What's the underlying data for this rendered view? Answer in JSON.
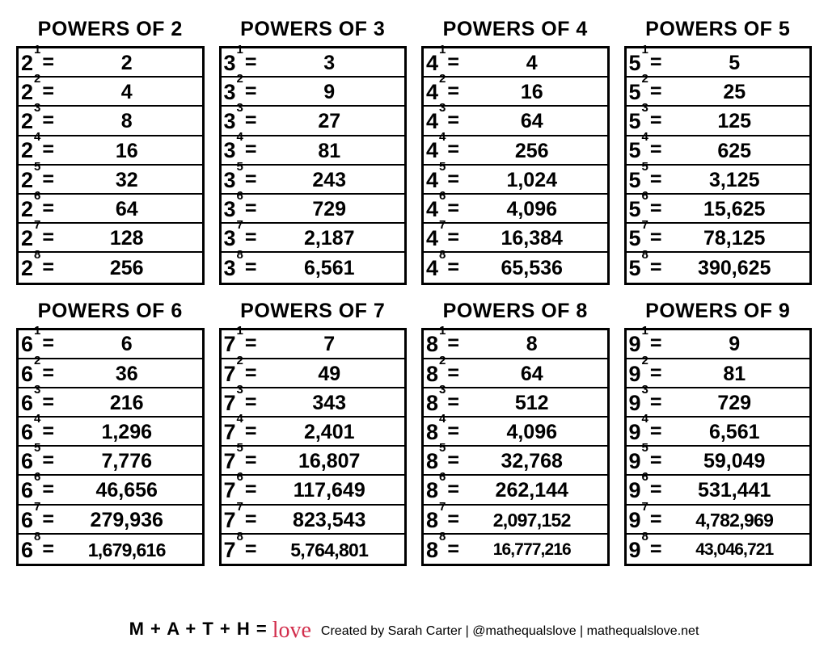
{
  "title_prefix": "POWERS OF ",
  "panels": [
    {
      "base": 2,
      "rows": [
        {
          "exp": 1,
          "val": "2"
        },
        {
          "exp": 2,
          "val": "4"
        },
        {
          "exp": 3,
          "val": "8"
        },
        {
          "exp": 4,
          "val": "16"
        },
        {
          "exp": 5,
          "val": "32"
        },
        {
          "exp": 6,
          "val": "64"
        },
        {
          "exp": 7,
          "val": "128"
        },
        {
          "exp": 8,
          "val": "256"
        }
      ]
    },
    {
      "base": 3,
      "rows": [
        {
          "exp": 1,
          "val": "3"
        },
        {
          "exp": 2,
          "val": "9"
        },
        {
          "exp": 3,
          "val": "27"
        },
        {
          "exp": 4,
          "val": "81"
        },
        {
          "exp": 5,
          "val": "243"
        },
        {
          "exp": 6,
          "val": "729"
        },
        {
          "exp": 7,
          "val": "2,187"
        },
        {
          "exp": 8,
          "val": "6,561"
        }
      ]
    },
    {
      "base": 4,
      "rows": [
        {
          "exp": 1,
          "val": "4"
        },
        {
          "exp": 2,
          "val": "16"
        },
        {
          "exp": 3,
          "val": "64"
        },
        {
          "exp": 4,
          "val": "256"
        },
        {
          "exp": 5,
          "val": "1,024"
        },
        {
          "exp": 6,
          "val": "4,096"
        },
        {
          "exp": 7,
          "val": "16,384"
        },
        {
          "exp": 8,
          "val": "65,536"
        }
      ]
    },
    {
      "base": 5,
      "rows": [
        {
          "exp": 1,
          "val": "5"
        },
        {
          "exp": 2,
          "val": "25"
        },
        {
          "exp": 3,
          "val": "125"
        },
        {
          "exp": 4,
          "val": "625"
        },
        {
          "exp": 5,
          "val": "3,125"
        },
        {
          "exp": 6,
          "val": "15,625"
        },
        {
          "exp": 7,
          "val": "78,125"
        },
        {
          "exp": 8,
          "val": "390,625"
        }
      ]
    },
    {
      "base": 6,
      "rows": [
        {
          "exp": 1,
          "val": "6"
        },
        {
          "exp": 2,
          "val": "36"
        },
        {
          "exp": 3,
          "val": "216"
        },
        {
          "exp": 4,
          "val": "1,296"
        },
        {
          "exp": 5,
          "val": "7,776"
        },
        {
          "exp": 6,
          "val": "46,656"
        },
        {
          "exp": 7,
          "val": "279,936"
        },
        {
          "exp": 8,
          "val": "1,679,616"
        }
      ]
    },
    {
      "base": 7,
      "rows": [
        {
          "exp": 1,
          "val": "7"
        },
        {
          "exp": 2,
          "val": "49"
        },
        {
          "exp": 3,
          "val": "343"
        },
        {
          "exp": 4,
          "val": "2,401"
        },
        {
          "exp": 5,
          "val": "16,807"
        },
        {
          "exp": 6,
          "val": "117,649"
        },
        {
          "exp": 7,
          "val": "823,543"
        },
        {
          "exp": 8,
          "val": "5,764,801"
        }
      ]
    },
    {
      "base": 8,
      "rows": [
        {
          "exp": 1,
          "val": "8"
        },
        {
          "exp": 2,
          "val": "64"
        },
        {
          "exp": 3,
          "val": "512"
        },
        {
          "exp": 4,
          "val": "4,096"
        },
        {
          "exp": 5,
          "val": "32,768"
        },
        {
          "exp": 6,
          "val": "262,144"
        },
        {
          "exp": 7,
          "val": "2,097,152"
        },
        {
          "exp": 8,
          "val": "16,777,216"
        }
      ]
    },
    {
      "base": 9,
      "rows": [
        {
          "exp": 1,
          "val": "9"
        },
        {
          "exp": 2,
          "val": "81"
        },
        {
          "exp": 3,
          "val": "729"
        },
        {
          "exp": 4,
          "val": "6,561"
        },
        {
          "exp": 5,
          "val": "59,049"
        },
        {
          "exp": 6,
          "val": "531,441"
        },
        {
          "exp": 7,
          "val": "4,782,969"
        },
        {
          "exp": 8,
          "val": "43,046,721"
        }
      ]
    }
  ],
  "footer": {
    "math": "M + A + T + H = ",
    "love": "love",
    "credit": "Created by Sarah Carter | @mathequalslove | mathequalslove.net"
  },
  "style": {
    "border_color": "#000000",
    "background_color": "#ffffff",
    "love_color": "#d22e4c",
    "title_fontsize": 25,
    "cell_fontsize": 25
  }
}
